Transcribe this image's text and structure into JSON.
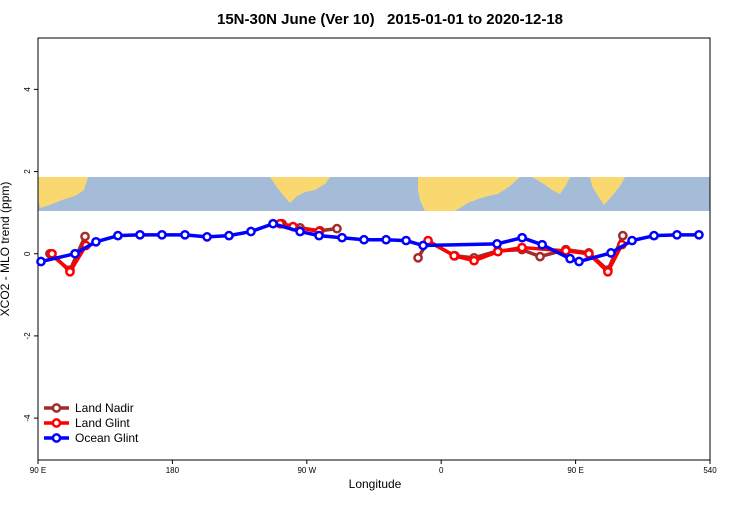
{
  "chart_data": {
    "type": "line",
    "title": "15N-30N June (Ver 10)   2015-01-01 to 2020-12-18",
    "x_label": "Longitude",
    "y_label": "XCO2 - MLO trend (ppm)",
    "xlim": [
      90,
      540
    ],
    "xticks": [
      {
        "value": 90,
        "label": "90 E"
      },
      180,
      {
        "value": 270,
        "label": "90 W"
      },
      {
        "value": 360,
        "label": "0"
      },
      {
        "value": 450,
        "label": "90 E"
      },
      540
    ],
    "ylim": [
      -5.02,
      5.25
    ],
    "yticks": [
      -4,
      -2,
      0,
      2,
      4
    ],
    "legend": "bottom-left",
    "series": [
      {
        "name": "Land Nadir",
        "color": "#a52a2a",
        "x": [
          98,
          111.4,
          121.5,
          null,
          253.4,
          265.5,
          278.8,
          290.2,
          null,
          344.5,
          351.2,
          369.2,
          382,
          398,
          414.1,
          426.2,
          443.5,
          458.9,
          471.6,
          481.6
        ],
        "values": [
          0,
          -0.4,
          0.42,
          null,
          0.73,
          0.63,
          0.56,
          0.61,
          null,
          -0.1,
          0.3,
          -0.05,
          -0.1,
          0.07,
          0.1,
          -0.07,
          0.1,
          0.02,
          -0.4,
          0.44
        ]
      },
      {
        "name": "Land Glint",
        "color": "#ff0000",
        "x": [
          99.4,
          111.4,
          122.1,
          null,
          252.1,
          260.8,
          278.2,
          null,
          351.2,
          368.6,
          382,
          398,
          414.1,
          443.5,
          458.9,
          471.6,
          481
        ],
        "values": [
          0,
          -0.44,
          0.2,
          null,
          0.73,
          0.66,
          0.54,
          null,
          0.32,
          -0.05,
          -0.17,
          0.05,
          0.15,
          0.07,
          0,
          -0.44,
          0.22
        ]
      },
      {
        "name": "Ocean Glint",
        "color": "#0000ff",
        "x": [
          92,
          114.8,
          128.8,
          143.5,
          158.3,
          173,
          188.4,
          203.2,
          217.9,
          232.6,
          247.4,
          265.5,
          278.2,
          293.6,
          308.3,
          323.1,
          336.5,
          347.9,
          397.4,
          414.2,
          427.6,
          446.3,
          452.3,
          473.7,
          487.8,
          502.5,
          517.9,
          532.6
        ],
        "values": [
          -0.19,
          0,
          0.29,
          0.44,
          0.46,
          0.46,
          0.46,
          0.41,
          0.44,
          0.54,
          0.73,
          0.54,
          0.44,
          0.39,
          0.34,
          0.34,
          0.32,
          0.2,
          0.24,
          0.39,
          0.22,
          -0.12,
          -0.19,
          0.02,
          0.32,
          0.44,
          0.46,
          0.46
        ]
      }
    ]
  }
}
